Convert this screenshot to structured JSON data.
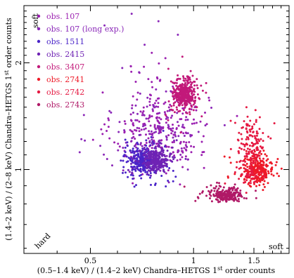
{
  "chart_data": {
    "type": "scatter",
    "xlabel": "(0.5–1.4 keV) / (1.4–2 keV) Chandra–HETGS 1st order counts",
    "xlabel_parts": {
      "before": "(0.5–1.4 keV) / (1.4–2 keV) Chandra–HETGS 1",
      "sup": "st",
      "after": " order counts"
    },
    "ylabel": "(1.4–2 keV) / (2–8 keV) Chandra–HETGS 1st order counts",
    "ylabel_parts": {
      "before": "(1.4–2 keV) / (2–8 keV) Chandra–HETGS 1",
      "sup": "st",
      "after": " order counts"
    },
    "xscale": "log",
    "yscale": "log",
    "xlim": [
      0.32,
      1.9
    ],
    "ylim": [
      0.58,
      2.9
    ],
    "x_ticks": [
      {
        "value": 0.5,
        "label": "0.5"
      },
      {
        "value": 1,
        "label": "1"
      },
      {
        "value": 1.5,
        "label": "1.5"
      }
    ],
    "y_ticks": [
      {
        "value": 1,
        "label": "1"
      },
      {
        "value": 2,
        "label": "2"
      }
    ],
    "corner_labels": {
      "top_left": "soft",
      "bottom_left": "hard",
      "bottom_right": "soft"
    },
    "legend_position": "top-left",
    "series": [
      {
        "name": "obs. 107",
        "color": "#9b1fb0",
        "clusters": [
          {
            "cx": 0.8,
            "cy": 1.28,
            "sx": 0.16,
            "sy": 0.13,
            "n": 240
          },
          {
            "cx": 0.78,
            "cy": 1.7,
            "sx": 0.12,
            "sy": 0.12,
            "n": 35
          }
        ]
      },
      {
        "name": "obs. 107 (long exp.)",
        "color": "#8a27b8",
        "clusters": [
          {
            "cx": 0.76,
            "cy": 1.27,
            "sx": 0.19,
            "sy": 0.15,
            "n": 120
          }
        ],
        "points": [
          [
            0.55,
            2.55
          ],
          [
            0.72,
            2.25
          ],
          [
            0.79,
            2.62
          ],
          [
            0.66,
            2.75
          ],
          [
            0.9,
            2.4
          ]
        ]
      },
      {
        "name": "obs. 1511",
        "color": "#4a24c8",
        "clusters": [
          {
            "cx": 0.71,
            "cy": 1.06,
            "sx": 0.045,
            "sy": 0.035,
            "n": 200
          },
          {
            "cx": 0.72,
            "cy": 1.05,
            "sx": 0.09,
            "sy": 0.08,
            "n": 90
          }
        ]
      },
      {
        "name": "obs. 2415",
        "color": "#6f23b4",
        "clusters": [
          {
            "cx": 0.78,
            "cy": 1.06,
            "sx": 0.04,
            "sy": 0.035,
            "n": 220
          },
          {
            "cx": 0.77,
            "cy": 1.08,
            "sx": 0.08,
            "sy": 0.06,
            "n": 60
          }
        ]
      },
      {
        "name": "obs. 3407",
        "color": "#c2197a",
        "clusters": [
          {
            "cx": 0.94,
            "cy": 1.63,
            "sx": 0.035,
            "sy": 0.045,
            "n": 320
          },
          {
            "cx": 0.95,
            "cy": 1.62,
            "sx": 0.07,
            "sy": 0.08,
            "n": 60
          }
        ]
      },
      {
        "name": "obs. 2741",
        "color": "#ee1a28",
        "clusters": [
          {
            "cx": 1.55,
            "cy": 0.99,
            "sx": 0.05,
            "sy": 0.04,
            "n": 200
          },
          {
            "cx": 1.48,
            "cy": 1.04,
            "sx": 0.07,
            "sy": 0.07,
            "n": 60
          }
        ]
      },
      {
        "name": "obs. 2742",
        "color": "#e51942",
        "clusters": [
          {
            "cx": 1.47,
            "cy": 1.19,
            "sx": 0.05,
            "sy": 0.09,
            "n": 130
          },
          {
            "cx": 1.45,
            "cy": 0.96,
            "sx": 0.05,
            "sy": 0.05,
            "n": 40
          }
        ]
      },
      {
        "name": "obs. 2743",
        "color": "#b01967",
        "clusters": [
          {
            "cx": 1.25,
            "cy": 0.84,
            "sx": 0.05,
            "sy": 0.02,
            "n": 140
          },
          {
            "cx": 1.2,
            "cy": 0.86,
            "sx": 0.09,
            "sy": 0.03,
            "n": 80
          }
        ]
      }
    ]
  }
}
